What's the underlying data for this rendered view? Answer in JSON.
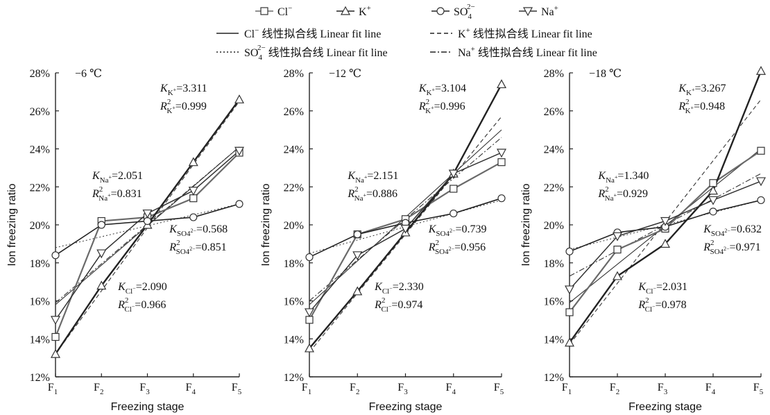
{
  "legend": {
    "markers": [
      {
        "key": "cl",
        "label": "Cl",
        "sup": "−"
      },
      {
        "key": "k",
        "label": "K",
        "sup": "+"
      },
      {
        "key": "so4",
        "label": "SO",
        "sub": "4",
        "sup": "2−"
      },
      {
        "key": "na",
        "label": "Na",
        "sup": "+"
      }
    ],
    "fits": [
      {
        "key": "cl",
        "ion": "Cl",
        "sup": "−",
        "sub": "",
        "text": "线性拟合线 Linear fit line",
        "dash": "solid"
      },
      {
        "key": "k",
        "ion": "K",
        "sup": "+",
        "sub": "",
        "text": "线性拟合线 Linear fit line",
        "dash": "dashed"
      },
      {
        "key": "so4",
        "ion": "SO",
        "sup": "2−",
        "sub": "4",
        "text": "线性拟合线 Linear fit line",
        "dash": "dotted"
      },
      {
        "key": "na",
        "ion": "Na",
        "sup": "+",
        "sub": "",
        "text": "线性拟合线 Linear fit line",
        "dash": "dashdot"
      }
    ]
  },
  "chart_data": [
    {
      "type": "line",
      "panel_label": "−6 ℃",
      "xlabel": "Freezing stage",
      "ylabel": "Ion freezing ratio",
      "ylim": [
        12,
        28
      ],
      "yticks": [
        "12%",
        "14%",
        "16%",
        "18%",
        "20%",
        "22%",
        "24%",
        "26%",
        "28%"
      ],
      "categories": [
        "F1",
        "F2",
        "F3",
        "F4",
        "F5"
      ],
      "series": [
        {
          "key": "cl",
          "name": "Cl−",
          "values": [
            14.1,
            20.2,
            20.4,
            21.4,
            23.8
          ]
        },
        {
          "key": "k",
          "name": "K+",
          "values": [
            13.2,
            16.8,
            20.0,
            23.3,
            26.6
          ]
        },
        {
          "key": "so4",
          "name": "SO42−",
          "values": [
            18.4,
            20.0,
            20.2,
            20.4,
            21.1
          ]
        },
        {
          "key": "na",
          "name": "Na+",
          "values": [
            15.0,
            18.5,
            20.6,
            21.8,
            23.9
          ]
        }
      ],
      "fits": [
        {
          "key": "cl",
          "start": 15.8,
          "end": 24.1
        },
        {
          "key": "k",
          "start": 13.2,
          "end": 26.5
        },
        {
          "key": "so4",
          "start": 18.8,
          "end": 21.1
        },
        {
          "key": "na",
          "start": 15.9,
          "end": 24.1
        }
      ],
      "annotations": [
        {
          "ion": "K",
          "sub": "K+",
          "k": "3.311",
          "r2": "0.999"
        },
        {
          "ion": "Na",
          "sub": "Na+",
          "k": "2.051",
          "r2": "0.831"
        },
        {
          "ion": "SO4",
          "sub": "SO42−",
          "k": "0.568",
          "r2": "0.851"
        },
        {
          "ion": "Cl",
          "sub": "Cl−",
          "k": "2.090",
          "r2": "0.966"
        }
      ]
    },
    {
      "type": "line",
      "panel_label": "−12 ℃",
      "xlabel": "Freezing stage",
      "ylabel": "Ion freezing ratio",
      "ylim": [
        12,
        28
      ],
      "yticks": [
        "12%",
        "14%",
        "16%",
        "18%",
        "20%",
        "22%",
        "24%",
        "26%",
        "28%"
      ],
      "categories": [
        "F1",
        "F2",
        "F3",
        "F4",
        "F5"
      ],
      "series": [
        {
          "key": "cl",
          "name": "Cl−",
          "values": [
            15.0,
            19.5,
            20.3,
            21.9,
            23.3
          ]
        },
        {
          "key": "k",
          "name": "K+",
          "values": [
            13.5,
            16.5,
            19.6,
            22.7,
            27.4
          ]
        },
        {
          "key": "so4",
          "name": "SO42−",
          "values": [
            18.3,
            19.5,
            20.1,
            20.6,
            21.4
          ]
        },
        {
          "key": "na",
          "name": "Na+",
          "values": [
            15.4,
            18.4,
            19.8,
            22.7,
            23.8
          ]
        }
      ],
      "fits": [
        {
          "key": "cl",
          "start": 15.8,
          "end": 25.0
        },
        {
          "key": "k",
          "start": 13.3,
          "end": 25.7
        },
        {
          "key": "so4",
          "start": 18.5,
          "end": 21.3
        },
        {
          "key": "na",
          "start": 16.0,
          "end": 24.6
        }
      ],
      "annotations": [
        {
          "ion": "K",
          "sub": "K+",
          "k": "3.104",
          "r2": "0.996"
        },
        {
          "ion": "Na",
          "sub": "Na+",
          "k": "2.151",
          "r2": "0.886"
        },
        {
          "ion": "SO4",
          "sub": "SO42−",
          "k": "0.739",
          "r2": "0.956"
        },
        {
          "ion": "Cl",
          "sub": "Cl−",
          "k": "2.330",
          "r2": "0.974"
        }
      ]
    },
    {
      "type": "line",
      "panel_label": "−18 ℃",
      "xlabel": "Freezing stage",
      "ylabel": "Ion freezing ratio",
      "ylim": [
        12,
        28
      ],
      "yticks": [
        "12%",
        "14%",
        "16%",
        "18%",
        "20%",
        "22%",
        "24%",
        "26%",
        "28%"
      ],
      "categories": [
        "F1",
        "F2",
        "F3",
        "F4",
        "F5"
      ],
      "series": [
        {
          "key": "cl",
          "name": "Cl−",
          "values": [
            15.4,
            18.7,
            19.8,
            22.2,
            23.9
          ]
        },
        {
          "key": "k",
          "name": "K+",
          "values": [
            13.8,
            17.3,
            19.0,
            21.8,
            28.1
          ]
        },
        {
          "key": "so4",
          "name": "SO42−",
          "values": [
            18.6,
            19.6,
            19.9,
            20.7,
            21.3
          ]
        },
        {
          "key": "na",
          "name": "Na+",
          "values": [
            16.6,
            19.4,
            20.2,
            21.3,
            22.3
          ]
        }
      ],
      "fits": [
        {
          "key": "cl",
          "start": 15.9,
          "end": 24.0
        },
        {
          "key": "k",
          "start": 13.7,
          "end": 26.6
        },
        {
          "key": "so4",
          "start": 18.7,
          "end": 21.3
        },
        {
          "key": "na",
          "start": 17.3,
          "end": 22.7
        }
      ],
      "annotations": [
        {
          "ion": "K",
          "sub": "K+",
          "k": "3.267",
          "r2": "0.948"
        },
        {
          "ion": "Na",
          "sub": "Na+",
          "k": "1.340",
          "r2": "0.929"
        },
        {
          "ion": "SO4",
          "sub": "SO42−",
          "k": "0.632",
          "r2": "0.971"
        },
        {
          "ion": "Cl",
          "sub": "Cl−",
          "k": "2.031",
          "r2": "0.978"
        }
      ]
    }
  ]
}
